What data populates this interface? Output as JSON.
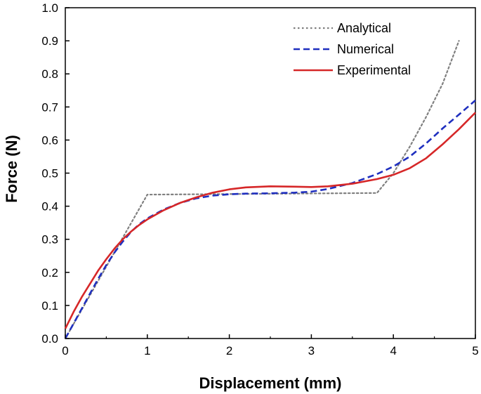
{
  "chart_data": {
    "type": "line",
    "xlabel": "Displacement (mm)",
    "ylabel": "Force (N)",
    "xlim": [
      0,
      5
    ],
    "ylim": [
      0,
      1.0
    ],
    "xticks": [
      "0",
      "1",
      "2",
      "3",
      "4",
      "5"
    ],
    "yticks": [
      "0.0",
      "0.1",
      "0.2",
      "0.3",
      "0.4",
      "0.5",
      "0.6",
      "0.7",
      "0.8",
      "0.9",
      "1.0"
    ],
    "grid": false,
    "legend_position": "top-right",
    "series": [
      {
        "name": "Analytical",
        "color": "#808080",
        "style": "dotted",
        "x": [
          0,
          1.0,
          3.8,
          4.0,
          4.2,
          4.4,
          4.6,
          4.8
        ],
        "y": [
          0,
          0.435,
          0.44,
          0.5,
          0.58,
          0.67,
          0.77,
          0.9
        ]
      },
      {
        "name": "Numerical",
        "color": "#1f2fbf",
        "style": "dashed",
        "x": [
          0,
          0.1,
          0.2,
          0.3,
          0.4,
          0.5,
          0.6,
          0.7,
          0.8,
          0.9,
          1.0,
          1.2,
          1.4,
          1.6,
          1.8,
          2.0,
          2.2,
          2.5,
          2.8,
          3.0,
          3.2,
          3.5,
          3.8,
          4.0,
          4.2,
          4.4,
          4.6,
          4.8,
          5.0
        ],
        "y": [
          0,
          0.045,
          0.09,
          0.135,
          0.18,
          0.222,
          0.26,
          0.293,
          0.322,
          0.345,
          0.363,
          0.39,
          0.41,
          0.424,
          0.432,
          0.436,
          0.438,
          0.439,
          0.441,
          0.444,
          0.452,
          0.47,
          0.497,
          0.52,
          0.55,
          0.59,
          0.635,
          0.677,
          0.72
        ]
      },
      {
        "name": "Experimental",
        "color": "#d62728",
        "style": "solid",
        "x": [
          0,
          0.1,
          0.2,
          0.3,
          0.4,
          0.5,
          0.6,
          0.7,
          0.8,
          0.9,
          1.0,
          1.2,
          1.4,
          1.6,
          1.8,
          2.0,
          2.2,
          2.5,
          2.8,
          3.0,
          3.2,
          3.5,
          3.8,
          4.0,
          4.2,
          4.4,
          4.6,
          4.8,
          5.0
        ],
        "y": [
          0.03,
          0.08,
          0.125,
          0.165,
          0.205,
          0.24,
          0.272,
          0.3,
          0.323,
          0.343,
          0.36,
          0.388,
          0.41,
          0.427,
          0.441,
          0.451,
          0.457,
          0.46,
          0.459,
          0.458,
          0.46,
          0.468,
          0.482,
          0.495,
          0.515,
          0.545,
          0.587,
          0.633,
          0.683
        ]
      }
    ]
  }
}
